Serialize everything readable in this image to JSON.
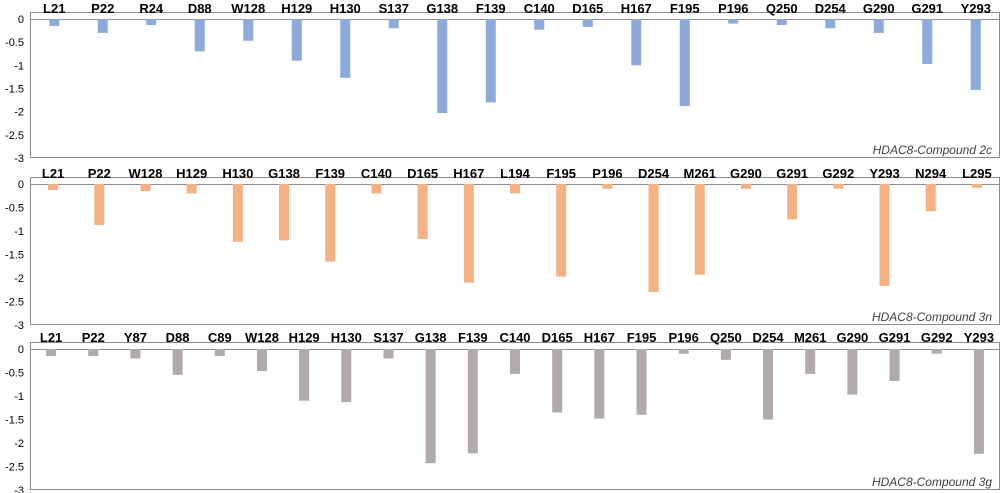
{
  "chart_data": [
    {
      "type": "bar",
      "title": "HDAC8-Compound 2c",
      "color": "#8eaadb",
      "ylim": [
        -3,
        0
      ],
      "yticks": [
        "0",
        "-0.5",
        "-1",
        "-1.5",
        "-2",
        "-2.5",
        "-3"
      ],
      "categories": [
        "L21",
        "P22",
        "R24",
        "D88",
        "W128",
        "H129",
        "H130",
        "S137",
        "G138",
        "F139",
        "C140",
        "D165",
        "H167",
        "F195",
        "P196",
        "Q250",
        "D254",
        "G290",
        "G291",
        "Y293"
      ],
      "values": [
        -0.15,
        -0.3,
        -0.13,
        -0.7,
        -0.47,
        -0.9,
        -1.27,
        -0.2,
        -2.03,
        -1.8,
        -0.23,
        -0.17,
        -1.0,
        -1.88,
        -0.1,
        -0.13,
        -0.2,
        -0.3,
        -0.97,
        -1.53
      ]
    },
    {
      "type": "bar",
      "title": "HDAC8-Compound 3n",
      "color": "#f4b183",
      "ylim": [
        -3,
        0
      ],
      "yticks": [
        "0",
        "-0.5",
        "-1",
        "-1.5",
        "-2",
        "-2.5",
        "-3"
      ],
      "categories": [
        "L21",
        "P22",
        "W128",
        "H129",
        "H130",
        "G138",
        "F139",
        "C140",
        "D165",
        "H167",
        "L194",
        "F195",
        "P196",
        "D254",
        "M261",
        "G290",
        "G291",
        "G292",
        "Y293",
        "N294",
        "L295"
      ],
      "values": [
        -0.13,
        -0.87,
        -0.15,
        -0.2,
        -1.23,
        -1.2,
        -1.65,
        -0.2,
        -1.17,
        -2.1,
        -0.2,
        -1.97,
        -0.1,
        -2.3,
        -1.93,
        -0.1,
        -0.75,
        -0.1,
        -2.17,
        -0.58,
        -0.08
      ]
    },
    {
      "type": "bar",
      "title": "HDAC8-Compound 3g",
      "color": "#b0aaaa",
      "ylim": [
        -3,
        0
      ],
      "yticks": [
        "0",
        "-0.5",
        "-1",
        "-1.5",
        "-2",
        "-2.5",
        "-3"
      ],
      "categories": [
        "L21",
        "P22",
        "Y87",
        "D88",
        "C89",
        "W128",
        "H129",
        "H130",
        "S137",
        "G138",
        "F139",
        "C140",
        "D165",
        "H167",
        "F195",
        "P196",
        "Q250",
        "D254",
        "M261",
        "G290",
        "G291",
        "G292",
        "Y293"
      ],
      "values": [
        -0.15,
        -0.15,
        -0.2,
        -0.55,
        -0.15,
        -0.47,
        -1.1,
        -1.13,
        -0.2,
        -2.43,
        -2.22,
        -0.53,
        -1.35,
        -1.48,
        -1.4,
        -0.1,
        -0.23,
        -1.5,
        -0.53,
        -0.97,
        -0.68,
        -0.1,
        -2.23
      ]
    }
  ]
}
